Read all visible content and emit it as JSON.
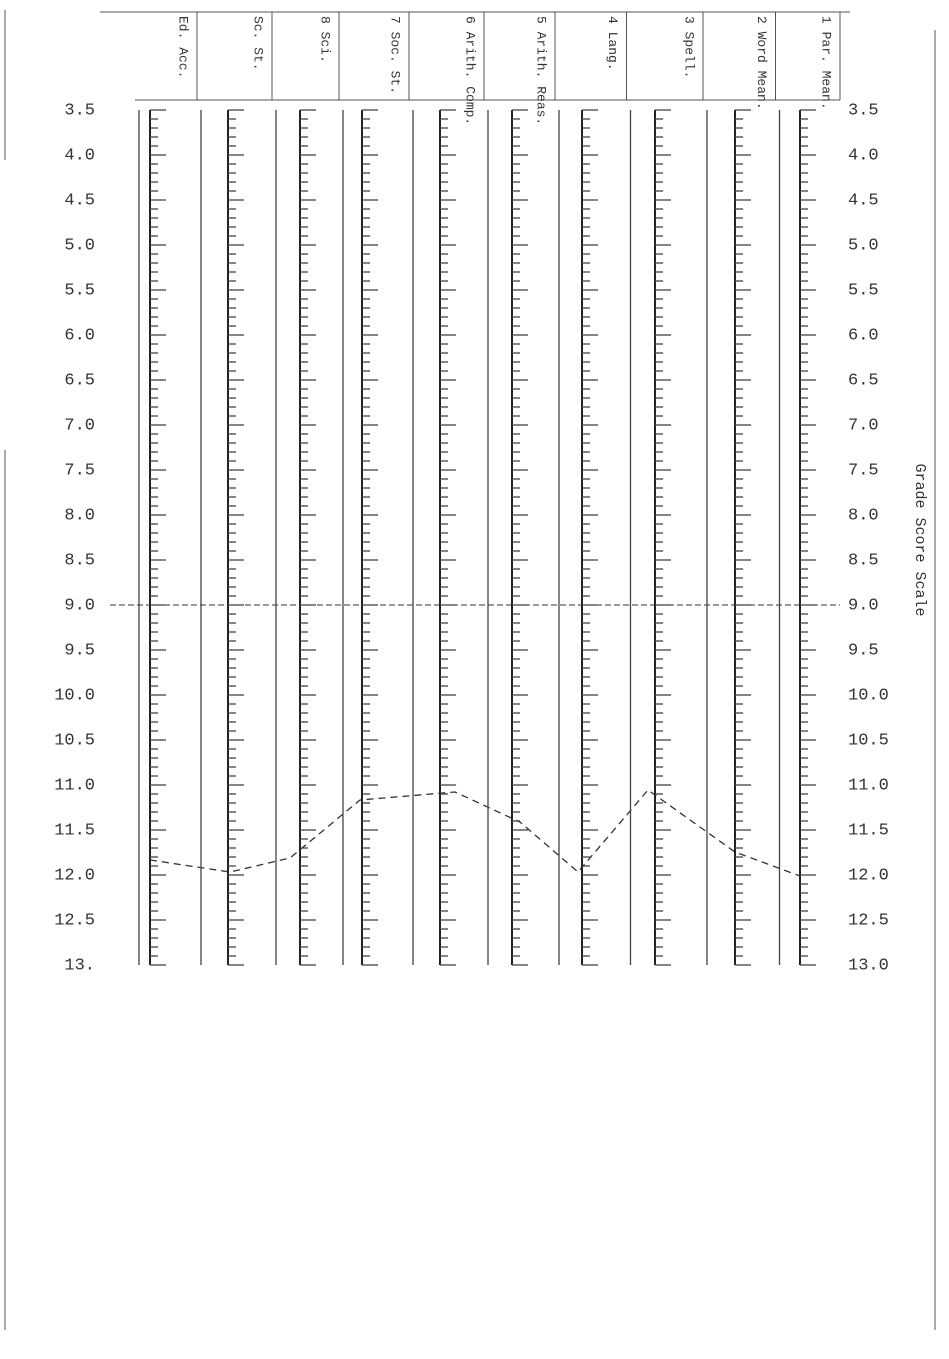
{
  "header": {
    "columns": [
      "Ed. Acc.",
      "Sc. St.",
      "8 Sci.",
      "7 Soc. St.",
      "6 Arith. Comp.",
      "5 Arith. Reas.",
      "4 Lang.",
      "3 Spell.",
      "2 Word Mean.",
      "1 Par. Mean."
    ]
  },
  "scale": {
    "title": "Grade Score Scale",
    "left": [
      "3.5",
      "4.0",
      "4.5",
      "5.0",
      "5.5",
      "6.0",
      "6.5",
      "7.0",
      "7.5",
      "8.0",
      "8.5",
      "9.0",
      "9.5",
      "10.0",
      "10.5",
      "11.0",
      "11.5",
      "12.0",
      "12.5",
      "13."
    ],
    "right": [
      "3.5",
      "4.0",
      "4.5",
      "5.0",
      "5.5",
      "6.0",
      "6.5",
      "7.0",
      "7.5",
      "8.0",
      "8.5",
      "9.0",
      "9.5",
      "10.0",
      "10.5",
      "11.0",
      "11.5",
      "12.0",
      "12.5",
      "13.0"
    ]
  }
}
